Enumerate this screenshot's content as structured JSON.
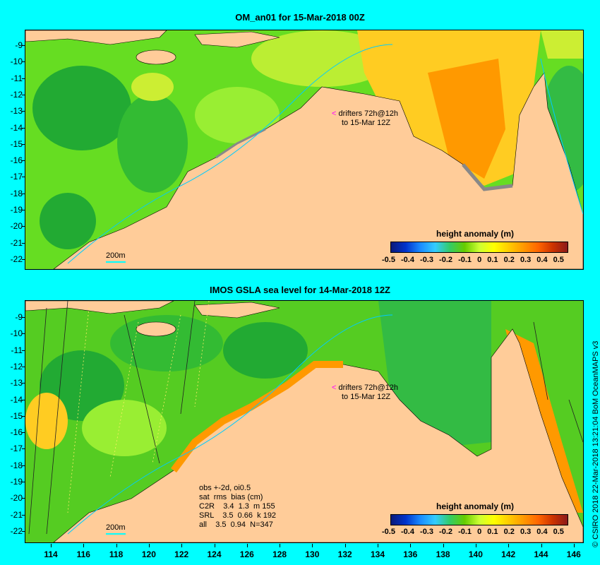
{
  "top_panel": {
    "title": "OM_an01 for 15-Mar-2018 00Z",
    "drifters_line1": "drifters 72h@12h",
    "drifters_line2": "to 15-Mar 12Z",
    "scale_label": "200m",
    "colorbar_title": "height anomaly (m)"
  },
  "bottom_panel": {
    "title": "IMOS GSLA sea level  for 14-Mar-2018 12Z",
    "drifters_line1": "drifters 72h@12h",
    "drifters_line2": "to 15-Mar 12Z",
    "scale_label": "200m",
    "colorbar_title": "height anomaly (m)",
    "stats": {
      "line1": "obs +-2d, oi0.5",
      "line2": "sat  rms  bias (cm)",
      "line3": "C2R    3.4  1.3  m 155",
      "line4": "SRL    3.5  0.66  k 192",
      "line5": "all    3.5  0.94  N=347"
    }
  },
  "y_labels": [
    "-9",
    "-10",
    "-11",
    "-12",
    "-13",
    "-14",
    "-15",
    "-16",
    "-17",
    "-18",
    "-19",
    "-20",
    "-21",
    "-22"
  ],
  "x_labels": [
    "114",
    "116",
    "118",
    "120",
    "122",
    "124",
    "126",
    "128",
    "130",
    "132",
    "134",
    "136",
    "138",
    "140",
    "142",
    "144",
    "146"
  ],
  "colorbar_labels": [
    "-0.5",
    "-0.4",
    "-0.3",
    "-0.2",
    "-0.1",
    "0",
    "0.1",
    "0.2",
    "0.3",
    "0.4",
    "0.5"
  ],
  "credit": "© CSIRO 2018  22-Mar-2018 13:21:04 BoM OceanMAPS v3",
  "colors": {
    "background": "#00ffff",
    "land": "#ffcc99",
    "sea_green": "#33cc33",
    "sea_light": "#99ee33",
    "sea_yellow": "#ffcc00",
    "sea_orange": "#ff9900"
  }
}
